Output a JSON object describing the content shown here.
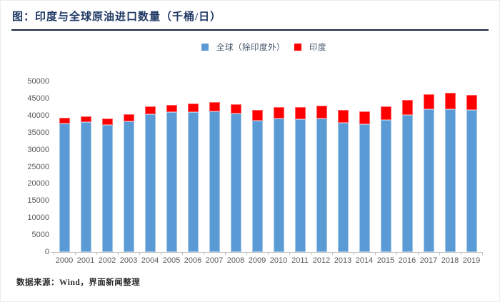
{
  "header": {
    "title": "图：印度与全球原油进口数量（千桶/日）"
  },
  "legend": [
    {
      "label": "全球（除印度外）",
      "color": "#5B9BD5"
    },
    {
      "label": "印度",
      "color": "#FF0000"
    }
  ],
  "footer": {
    "source": "数据来源：Wind，界面新闻整理"
  },
  "colors": {
    "title": "#1F3864",
    "divider": "#16213E",
    "axis_text": "#595959",
    "axis_line": "#BFBFBF",
    "series_global": "#5B9BD5",
    "series_india": "#FF0000"
  },
  "chart_data": {
    "type": "bar",
    "stacked": true,
    "title": "图：印度与全球原油进口数量（千桶/日）",
    "xlabel": "",
    "ylabel": "",
    "unit": "千桶/日",
    "categories": [
      "2000",
      "2001",
      "2002",
      "2003",
      "2004",
      "2005",
      "2006",
      "2007",
      "2008",
      "2009",
      "2010",
      "2011",
      "2012",
      "2013",
      "2014",
      "2015",
      "2016",
      "2017",
      "2018",
      "2019"
    ],
    "series": [
      {
        "name": "全球（除印度外）",
        "color": "#5B9BD5",
        "values": [
          37700,
          38000,
          37200,
          38200,
          40300,
          40900,
          41000,
          41200,
          40500,
          38500,
          39200,
          39000,
          39100,
          37800,
          37400,
          38800,
          40200,
          41900,
          41900,
          41600
        ]
      },
      {
        "name": "印度",
        "color": "#FF0000",
        "values": [
          1700,
          1800,
          1900,
          2100,
          2400,
          2200,
          2500,
          2700,
          2900,
          3200,
          3300,
          3400,
          3700,
          3800,
          3800,
          3900,
          4300,
          4400,
          4700,
          4500
        ]
      }
    ],
    "ylim": [
      0,
      50000
    ],
    "ytick_step": 5000,
    "grid": false,
    "legend_position": "top"
  }
}
